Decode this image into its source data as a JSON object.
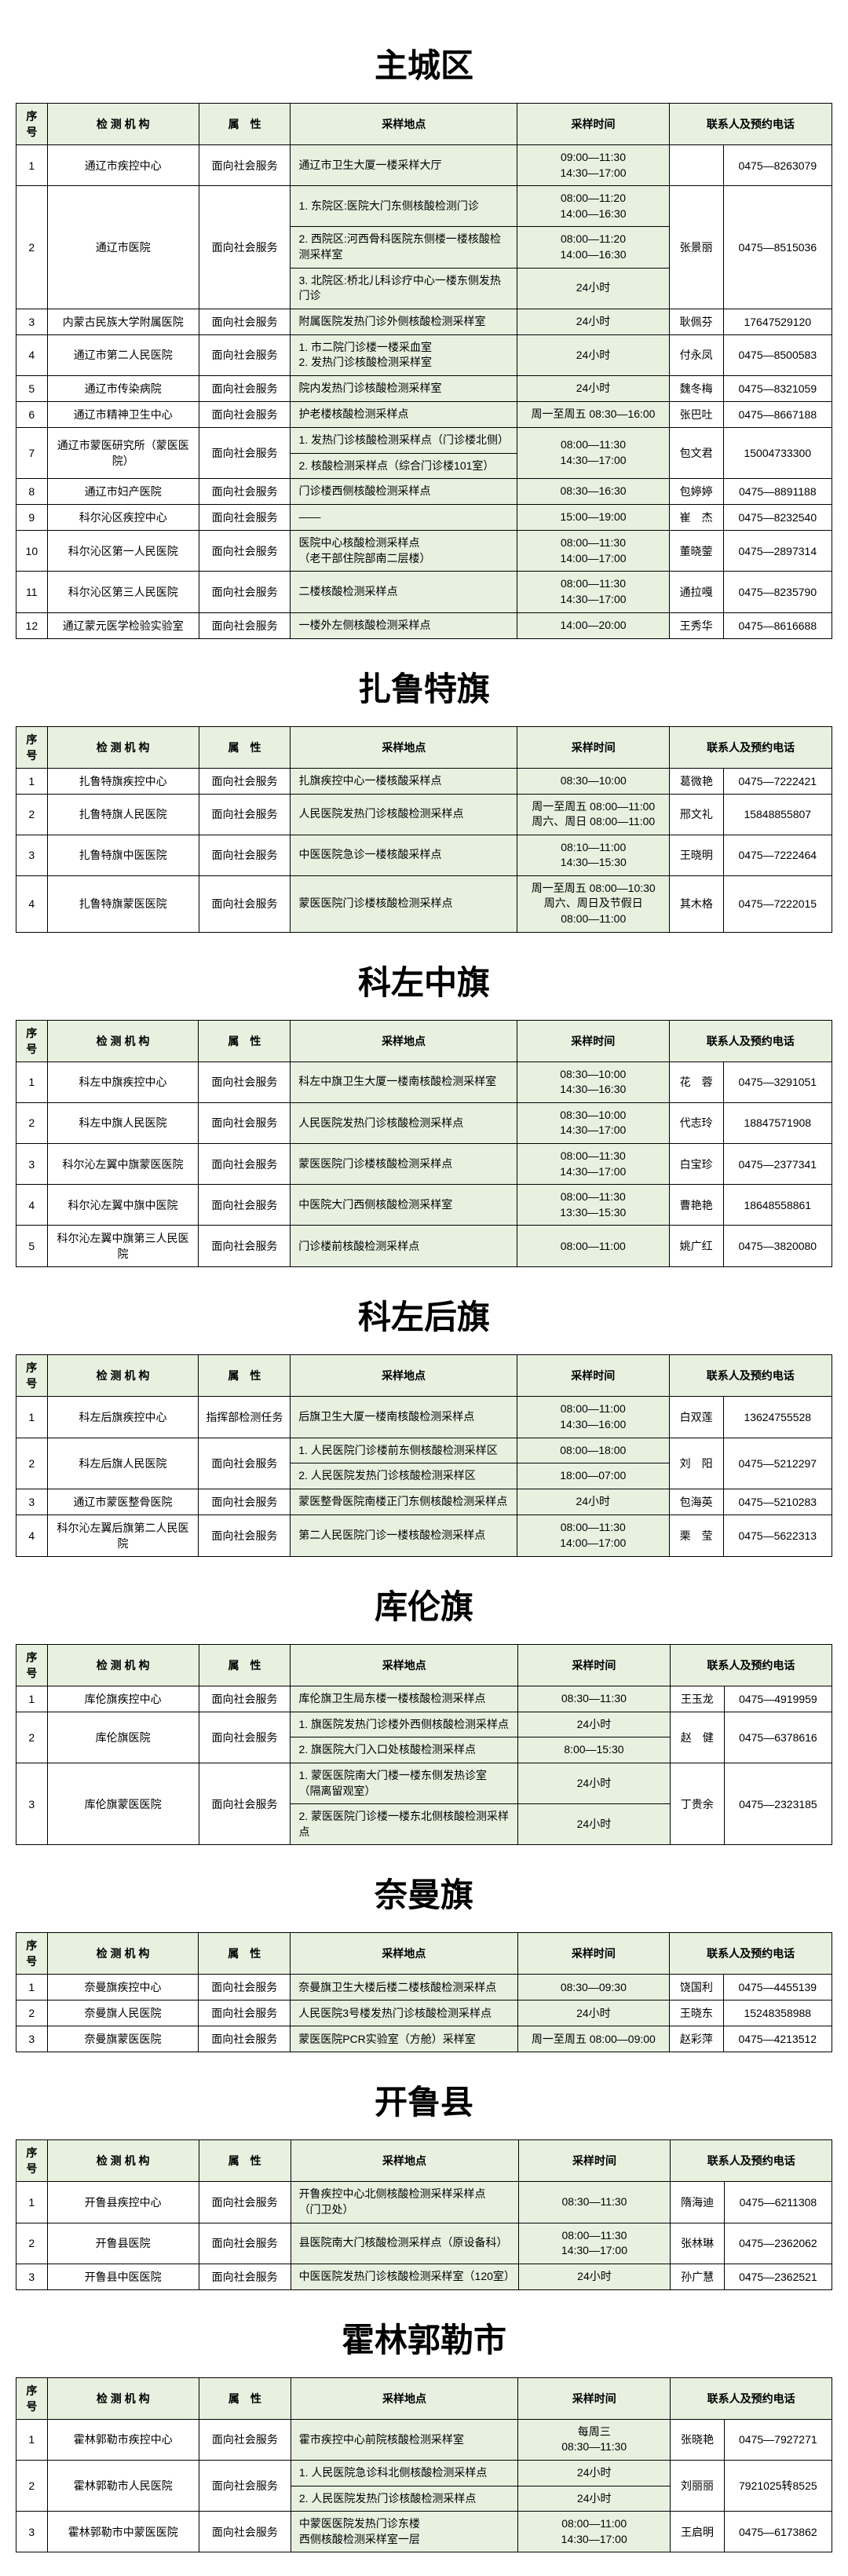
{
  "headers": [
    "序号",
    "检 测 机 构",
    "属　性",
    "采样地点",
    "采样时间",
    "联系人及预约电话"
  ],
  "sections": [
    {
      "title": "主城区",
      "rows": [
        {
          "seq": "1",
          "inst": "通辽市疾控中心",
          "attr": "面向社会服务",
          "loc": [
            "通辽市卫生大厦一楼采样大厅"
          ],
          "time": [
            "09:00—11:30\n14:30—17:00"
          ],
          "contact": [
            ""
          ],
          "phone": [
            "0475—8263079"
          ]
        },
        {
          "seq": "2",
          "inst": "通辽市医院",
          "attr": "面向社会服务",
          "loc": [
            "1. 东院区:医院大门东侧核酸检测门诊",
            "2. 西院区:河西骨科医院东侧楼一楼核酸检测采样室",
            "3. 北院区:桥北儿科诊疗中心一楼东侧发热门诊"
          ],
          "time": [
            "08:00—11:20\n14:00—16:30",
            "08:00—11:20\n14:00—16:30",
            "24小时"
          ],
          "contact": [
            "张景丽"
          ],
          "phone": [
            "0475—8515036"
          ]
        },
        {
          "seq": "3",
          "inst": "内蒙古民族大学附属医院",
          "attr": "面向社会服务",
          "loc": [
            "附属医院发热门诊外侧核酸检测采样室"
          ],
          "time": [
            "24小时"
          ],
          "contact": [
            "耿佩芬"
          ],
          "phone": [
            "17647529120"
          ]
        },
        {
          "seq": "4",
          "inst": "通辽市第二人民医院",
          "attr": "面向社会服务",
          "loc": [
            "1. 市二院门诊楼一楼采血室\n2. 发热门诊核酸检测采样室"
          ],
          "time": [
            "24小时"
          ],
          "contact": [
            "付永凤"
          ],
          "phone": [
            "0475—8500583"
          ]
        },
        {
          "seq": "5",
          "inst": "通辽市传染病院",
          "attr": "面向社会服务",
          "loc": [
            "院内发热门诊核酸检测采样室"
          ],
          "time": [
            "24小时"
          ],
          "contact": [
            "魏冬梅"
          ],
          "phone": [
            "0475—8321059"
          ]
        },
        {
          "seq": "6",
          "inst": "通辽市精神卫生中心",
          "attr": "面向社会服务",
          "loc": [
            "护老楼核酸检测采样点"
          ],
          "time": [
            "周一至周五 08:30—16:00"
          ],
          "contact": [
            "张巴吐"
          ],
          "phone": [
            "0475—8667188"
          ]
        },
        {
          "seq": "7",
          "inst": "通辽市蒙医研究所（蒙医医院）",
          "attr": "面向社会服务",
          "loc": [
            "1. 发热门诊核酸检测采样点（门诊楼北侧）",
            "2. 核酸检测采样点（综合门诊楼101室）"
          ],
          "time": [
            "08:00—11:30\n14:30—17:00"
          ],
          "contact": [
            "包文君"
          ],
          "phone": [
            "15004733300"
          ]
        },
        {
          "seq": "8",
          "inst": "通辽市妇产医院",
          "attr": "面向社会服务",
          "loc": [
            "门诊楼西侧核酸检测采样点"
          ],
          "time": [
            "08:30—16:30"
          ],
          "contact": [
            "包婷婷"
          ],
          "phone": [
            "0475—8891188"
          ]
        },
        {
          "seq": "9",
          "inst": "科尔沁区疾控中心",
          "attr": "面向社会服务",
          "loc": [
            "——"
          ],
          "time": [
            "15:00—19:00"
          ],
          "contact": [
            "崔　杰"
          ],
          "phone": [
            "0475—8232540"
          ]
        },
        {
          "seq": "10",
          "inst": "科尔沁区第一人民医院",
          "attr": "面向社会服务",
          "loc": [
            "医院中心核酸检测采样点\n（老干部住院部南二层楼）"
          ],
          "time": [
            "08:00—11:30\n14:00—17:00"
          ],
          "contact": [
            "董晓蓥"
          ],
          "phone": [
            "0475—2897314"
          ]
        },
        {
          "seq": "11",
          "inst": "科尔沁区第三人民医院",
          "attr": "面向社会服务",
          "loc": [
            "二楼核酸检测采样点"
          ],
          "time": [
            "08:00—11:30\n14:30—17:00"
          ],
          "contact": [
            "通拉嘎"
          ],
          "phone": [
            "0475—8235790"
          ]
        },
        {
          "seq": "12",
          "inst": "通辽蒙元医学检验实验室",
          "attr": "面向社会服务",
          "loc": [
            "一楼外左侧核酸检测采样点"
          ],
          "time": [
            "14:00—20:00"
          ],
          "contact": [
            "王秀华"
          ],
          "phone": [
            "0475—8616688"
          ]
        }
      ]
    },
    {
      "title": "扎鲁特旗",
      "rows": [
        {
          "seq": "1",
          "inst": "扎鲁特旗疾控中心",
          "attr": "面向社会服务",
          "loc": [
            "扎旗疾控中心一楼核酸采样点"
          ],
          "time": [
            "08:30—10:00"
          ],
          "contact": [
            "葛微艳"
          ],
          "phone": [
            "0475—7222421"
          ]
        },
        {
          "seq": "2",
          "inst": "扎鲁特旗人民医院",
          "attr": "面向社会服务",
          "loc": [
            "人民医院发热门诊核酸检测采样点"
          ],
          "time": [
            "周一至周五 08:00—11:00\n周六、周日 08:00—11:00"
          ],
          "contact": [
            "邢文礼"
          ],
          "phone": [
            "15848855807"
          ]
        },
        {
          "seq": "3",
          "inst": "扎鲁特旗中医医院",
          "attr": "面向社会服务",
          "loc": [
            "中医医院急诊一楼核酸采样点"
          ],
          "time": [
            "08:10—11:00\n14:30—15:30"
          ],
          "contact": [
            "王晓明"
          ],
          "phone": [
            "0475—7222464"
          ]
        },
        {
          "seq": "4",
          "inst": "扎鲁特旗蒙医医院",
          "attr": "面向社会服务",
          "loc": [
            "蒙医医院门诊楼核酸检测采样点"
          ],
          "time": [
            "周一至周五 08:00—10:30\n周六、周日及节假日\n08:00—11:00"
          ],
          "contact": [
            "其木格"
          ],
          "phone": [
            "0475—7222015"
          ]
        }
      ]
    },
    {
      "title": "科左中旗",
      "rows": [
        {
          "seq": "1",
          "inst": "科左中旗疾控中心",
          "attr": "面向社会服务",
          "loc": [
            "科左中旗卫生大厦一楼南核酸检测采样室"
          ],
          "time": [
            "08:30—10:00\n14:30—16:30"
          ],
          "contact": [
            "花　蓉"
          ],
          "phone": [
            "0475—3291051"
          ]
        },
        {
          "seq": "2",
          "inst": "科左中旗人民医院",
          "attr": "面向社会服务",
          "loc": [
            "人民医院发热门诊核酸检测采样点"
          ],
          "time": [
            "08:30—10:00\n14:30—17:00"
          ],
          "contact": [
            "代志玲"
          ],
          "phone": [
            "18847571908"
          ]
        },
        {
          "seq": "3",
          "inst": "科尔沁左翼中旗蒙医医院",
          "attr": "面向社会服务",
          "loc": [
            "蒙医医院门诊楼核酸检测采样点"
          ],
          "time": [
            "08:00—11:30\n14:30—17:00"
          ],
          "contact": [
            "白宝珍"
          ],
          "phone": [
            "0475—2377341"
          ]
        },
        {
          "seq": "4",
          "inst": "科尔沁左翼中旗中医院",
          "attr": "面向社会服务",
          "loc": [
            "中医院大门西侧核酸检测采样室"
          ],
          "time": [
            "08:00—11:30\n13:30—15:30"
          ],
          "contact": [
            "曹艳艳"
          ],
          "phone": [
            "18648558861"
          ]
        },
        {
          "seq": "5",
          "inst": "科尔沁左翼中旗第三人民医院",
          "attr": "面向社会服务",
          "loc": [
            "门诊楼前核酸检测采样点"
          ],
          "time": [
            "08:00—11:00"
          ],
          "contact": [
            "姚广红"
          ],
          "phone": [
            "0475—3820080"
          ]
        }
      ]
    },
    {
      "title": "科左后旗",
      "rows": [
        {
          "seq": "1",
          "inst": "科左后旗疾控中心",
          "attr": "指挥部检测任务",
          "loc": [
            "后旗卫生大厦一楼南核酸检测采样点"
          ],
          "time": [
            "08:00—11:00\n14:30—16:00"
          ],
          "contact": [
            "白双莲"
          ],
          "phone": [
            "13624755528"
          ]
        },
        {
          "seq": "2",
          "inst": "科左后旗人民医院",
          "attr": "面向社会服务",
          "loc": [
            "1. 人民医院门诊楼前东侧核酸检测采样区",
            "2. 人民医院发热门诊核酸检测采样区"
          ],
          "time": [
            "08:00—18:00",
            "18:00—07:00"
          ],
          "contact": [
            "刘　阳"
          ],
          "phone": [
            "0475—5212297"
          ]
        },
        {
          "seq": "3",
          "inst": "通辽市蒙医整骨医院",
          "attr": "面向社会服务",
          "loc": [
            "蒙医整骨医院南楼正门东侧核酸检测采样点"
          ],
          "time": [
            "24小时"
          ],
          "contact": [
            "包海英"
          ],
          "phone": [
            "0475—5210283"
          ]
        },
        {
          "seq": "4",
          "inst": "科尔沁左翼后旗第二人民医院",
          "attr": "面向社会服务",
          "loc": [
            "第二人民医院门诊一楼核酸检测采样点"
          ],
          "time": [
            "08:00—11:30\n14:00—17:00"
          ],
          "contact": [
            "栗　莹"
          ],
          "phone": [
            "0475—5622313"
          ]
        }
      ]
    },
    {
      "title": "库伦旗",
      "rows": [
        {
          "seq": "1",
          "inst": "库伦旗疾控中心",
          "attr": "面向社会服务",
          "loc": [
            "库伦旗卫生局东楼一楼核酸检测采样点"
          ],
          "time": [
            "08:30—11:30"
          ],
          "contact": [
            "王玉龙"
          ],
          "phone": [
            "0475—4919959"
          ]
        },
        {
          "seq": "2",
          "inst": "库伦旗医院",
          "attr": "面向社会服务",
          "loc": [
            "1. 旗医院发热门诊楼外西侧核酸检测采样点",
            "2. 旗医院大门入口处核酸检测采样点"
          ],
          "time": [
            "24小时",
            "8:00—15:30"
          ],
          "contact": [
            "赵　健"
          ],
          "phone": [
            "0475—6378616"
          ]
        },
        {
          "seq": "3",
          "inst": "库伦旗蒙医医院",
          "attr": "面向社会服务",
          "loc": [
            "1. 蒙医医院南大门楼一楼东侧发热诊室\n（隔离留观室）",
            "2. 蒙医医院门诊楼一楼东北侧核酸检测采样点"
          ],
          "time": [
            "24小时",
            "24小时"
          ],
          "contact": [
            "丁贵余"
          ],
          "phone": [
            "0475—2323185"
          ]
        }
      ]
    },
    {
      "title": "奈曼旗",
      "rows": [
        {
          "seq": "1",
          "inst": "奈曼旗疾控中心",
          "attr": "面向社会服务",
          "loc": [
            "奈曼旗卫生大楼后楼二楼核酸检测采样点"
          ],
          "time": [
            "08:30—09:30"
          ],
          "contact": [
            "饶国利"
          ],
          "phone": [
            "0475—4455139"
          ]
        },
        {
          "seq": "2",
          "inst": "奈曼旗人民医院",
          "attr": "面向社会服务",
          "loc": [
            "人民医院3号楼发热门诊核酸检测采样点"
          ],
          "time": [
            "24小时"
          ],
          "contact": [
            "王晓东"
          ],
          "phone": [
            "15248358988"
          ]
        },
        {
          "seq": "3",
          "inst": "奈曼旗蒙医医院",
          "attr": "面向社会服务",
          "loc": [
            "蒙医医院PCR实验室（方舱）采样室"
          ],
          "time": [
            "周一至周五 08:00—09:00"
          ],
          "contact": [
            "赵彩萍"
          ],
          "phone": [
            "0475—4213512"
          ]
        }
      ]
    },
    {
      "title": "开鲁县",
      "rows": [
        {
          "seq": "1",
          "inst": "开鲁县疾控中心",
          "attr": "面向社会服务",
          "loc": [
            "开鲁疾控中心北侧核酸检测采样采样点\n（门卫处）"
          ],
          "time": [
            "08:30—11:30"
          ],
          "contact": [
            "隋海迪"
          ],
          "phone": [
            "0475—6211308"
          ]
        },
        {
          "seq": "2",
          "inst": "开鲁县医院",
          "attr": "面向社会服务",
          "loc": [
            "县医院南大门核酸检测采样点（原设备科）"
          ],
          "time": [
            "08:00—11:30\n14:30—17:00"
          ],
          "contact": [
            "张林琳"
          ],
          "phone": [
            "0475—2362062"
          ]
        },
        {
          "seq": "3",
          "inst": "开鲁县中医医院",
          "attr": "面向社会服务",
          "loc": [
            "中医医院发热门诊核酸检测采样室（120室）"
          ],
          "time": [
            "24小时"
          ],
          "contact": [
            "孙广慧"
          ],
          "phone": [
            "0475—2362521"
          ]
        }
      ]
    },
    {
      "title": "霍林郭勒市",
      "rows": [
        {
          "seq": "1",
          "inst": "霍林郭勒市疾控中心",
          "attr": "面向社会服务",
          "loc": [
            "霍市疾控中心前院核酸检测采样室"
          ],
          "time": [
            "每周三\n08:30—11:30"
          ],
          "contact": [
            "张晓艳"
          ],
          "phone": [
            "0475—7927271"
          ]
        },
        {
          "seq": "2",
          "inst": "霍林郭勒市人民医院",
          "attr": "面向社会服务",
          "loc": [
            "1. 人民医院急诊科北侧核酸检测采样点",
            "2. 人民医院发热门诊核酸检测采样点"
          ],
          "time": [
            "24小时",
            "24小时"
          ],
          "contact": [
            "刘丽丽"
          ],
          "phone": [
            "7921025转8525"
          ]
        },
        {
          "seq": "3",
          "inst": "霍林郭勒市中蒙医医院",
          "attr": "面向社会服务",
          "loc": [
            "中蒙医医院发热门诊东楼\n西侧核酸检测采样室一层"
          ],
          "time": [
            "08:00—11:00\n14:30—17:00"
          ],
          "contact": [
            "王启明"
          ],
          "phone": [
            "0475—6173862"
          ]
        }
      ]
    }
  ]
}
